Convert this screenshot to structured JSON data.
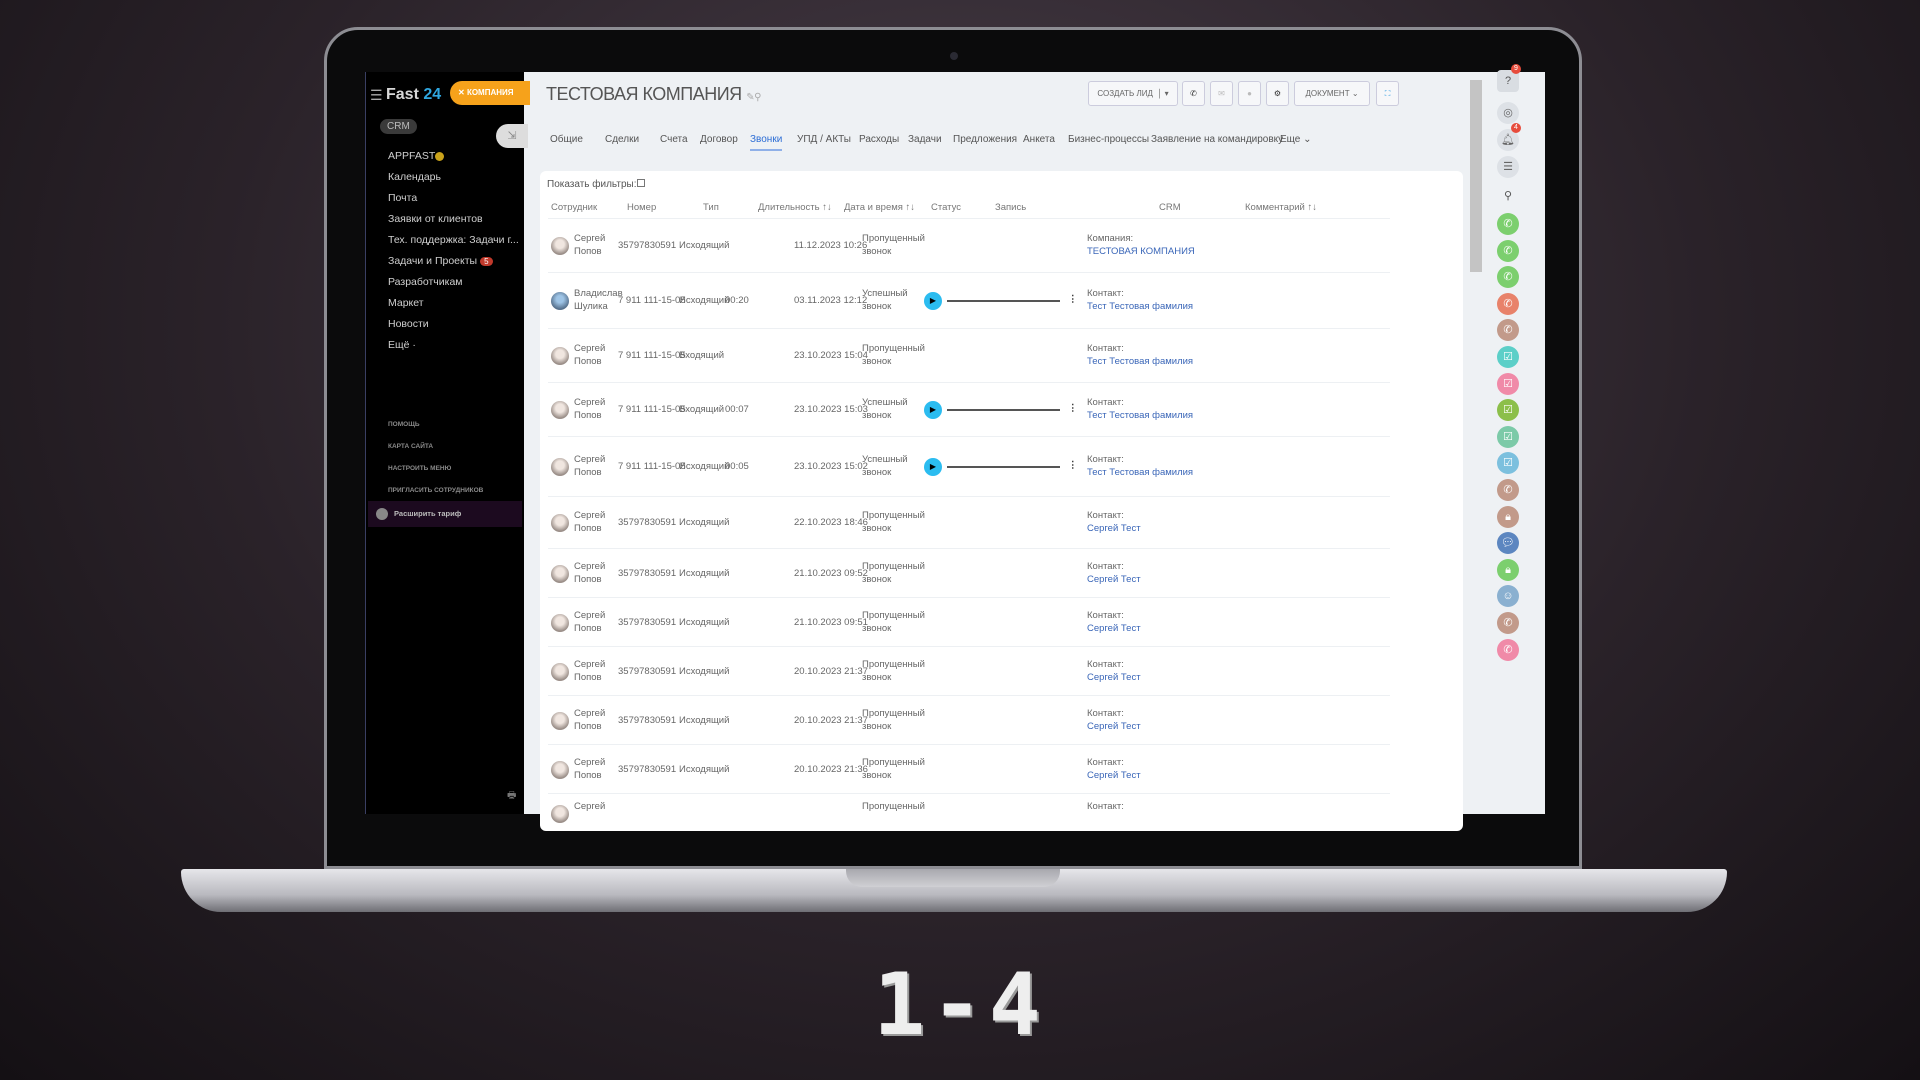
{
  "app": {
    "logo_text": "Fast",
    "logo_num": "24",
    "entity_pill": "КОМПАНИЯ",
    "crm_label": "CRM"
  },
  "sidebar": {
    "items": [
      {
        "label": "APPFAST"
      },
      {
        "label": "Календарь"
      },
      {
        "label": "Почта"
      },
      {
        "label": "Заявки от клиентов"
      },
      {
        "label": "Тех. поддержка: Задачи г..."
      },
      {
        "label": "Задачи и Проекты",
        "badge": "5"
      },
      {
        "label": "Разработчикам"
      },
      {
        "label": "Маркет"
      },
      {
        "label": "Новости"
      },
      {
        "label": "Ещё ·"
      }
    ],
    "small": [
      "Помощь",
      "Карта сайта",
      "Настроить меню",
      "Пригласить сотрудников"
    ],
    "upgrade": "Расширить тариф"
  },
  "header": {
    "title": "ТЕСТОВАЯ КОМПАНИЯ",
    "create_lead": "СОЗДАТЬ ЛИД",
    "document": "ДОКУМЕНТ"
  },
  "tabs": [
    "Общие",
    "Сделки",
    "Счета",
    "Договор",
    "Звонки",
    "УПД / АКТы",
    "Расходы",
    "Задачи",
    "Предложения",
    "Анкета",
    "Бизнес-процессы",
    "Заявление на командировку",
    "Еще ⌄"
  ],
  "active_tab": "Звонки",
  "calls": {
    "show_filters": "Показать фильтры:",
    "columns": [
      "Сотрудник",
      "Номер",
      "Тип",
      "Длительность ↑↓",
      "Дата и время ↑↓",
      "Статус",
      "Запись",
      "CRM",
      "Комментарий ↑↓"
    ],
    "rows": [
      {
        "first": "Сергей",
        "last": "Попов",
        "number": "35797830591",
        "type": "Исходящий",
        "duration": "",
        "datetime": "11.12.2023 10:26",
        "status1": "Пропущенный",
        "status2": "звонок",
        "record": false,
        "crm_label": "Компания:",
        "crm_link": "ТЕСТОВАЯ КОМПАНИЯ"
      },
      {
        "first": "Владислав",
        "last": "Шулика",
        "number": "7 911 111-15-05",
        "type": "Исходящий",
        "duration": "00:20",
        "datetime": "03.11.2023 12:12",
        "status1": "Успешный",
        "status2": "звонок",
        "record": true,
        "crm_label": "Контакт:",
        "crm_link": "Тест Тестовая фамилия"
      },
      {
        "first": "Сергей",
        "last": "Попов",
        "number": "7 911 111-15-05",
        "type": "Входящий",
        "duration": "",
        "datetime": "23.10.2023 15:04",
        "status1": "Пропущенный",
        "status2": "звонок",
        "record": false,
        "crm_label": "Контакт:",
        "crm_link": "Тест Тестовая фамилия"
      },
      {
        "first": "Сергей",
        "last": "Попов",
        "number": "7 911 111-15-05",
        "type": "Входящий",
        "duration": "00:07",
        "datetime": "23.10.2023 15:03",
        "status1": "Успешный",
        "status2": "звонок",
        "record": true,
        "crm_label": "Контакт:",
        "crm_link": "Тест Тестовая фамилия"
      },
      {
        "first": "Сергей",
        "last": "Попов",
        "number": "7 911 111-15-05",
        "type": "Исходящий",
        "duration": "00:05",
        "datetime": "23.10.2023 15:02",
        "status1": "Успешный",
        "status2": "звонок",
        "record": true,
        "crm_label": "Контакт:",
        "crm_link": "Тест Тестовая фамилия"
      },
      {
        "first": "Сергей",
        "last": "Попов",
        "number": "35797830591",
        "type": "Исходящий",
        "duration": "",
        "datetime": "22.10.2023 18:46",
        "status1": "Пропущенный",
        "status2": "звонок",
        "record": false,
        "crm_label": "Контакт:",
        "crm_link": "Сергей Тест"
      },
      {
        "first": "Сергей",
        "last": "Попов",
        "number": "35797830591",
        "type": "Исходящий",
        "duration": "",
        "datetime": "21.10.2023 09:52",
        "status1": "Пропущенный",
        "status2": "звонок",
        "record": false,
        "crm_label": "Контакт:",
        "crm_link": "Сергей Тест"
      },
      {
        "first": "Сергей",
        "last": "Попов",
        "number": "35797830591",
        "type": "Исходящий",
        "duration": "",
        "datetime": "21.10.2023 09:51",
        "status1": "Пропущенный",
        "status2": "звонок",
        "record": false,
        "crm_label": "Контакт:",
        "crm_link": "Сергей Тест"
      },
      {
        "first": "Сергей",
        "last": "Попов",
        "number": "35797830591",
        "type": "Исходящий",
        "duration": "",
        "datetime": "20.10.2023 21:37",
        "status1": "Пропущенный",
        "status2": "звонок",
        "record": false,
        "crm_label": "Контакт:",
        "crm_link": "Сергей Тест"
      },
      {
        "first": "Сергей",
        "last": "Попов",
        "number": "35797830591",
        "type": "Исходящий",
        "duration": "",
        "datetime": "20.10.2023 21:37",
        "status1": "Пропущенный",
        "status2": "звонок",
        "record": false,
        "crm_label": "Контакт:",
        "crm_link": "Сергей Тест"
      },
      {
        "first": "Сергей",
        "last": "Попов",
        "number": "35797830591",
        "type": "Исходящий",
        "duration": "",
        "datetime": "20.10.2023 21:36",
        "status1": "Пропущенный",
        "status2": "звонок",
        "record": false,
        "crm_label": "Контакт:",
        "crm_link": "Сергей Тест"
      },
      {
        "first": "Сергей",
        "last": "",
        "number": "",
        "type": "",
        "duration": "",
        "datetime": "",
        "status1": "Пропущенный",
        "status2": "",
        "record": false,
        "crm_label": "Контакт:",
        "crm_link": ""
      }
    ]
  },
  "right_panel": {
    "help_badge": "9",
    "notif_badge": "4",
    "icons": [
      {
        "name": "phone-icon",
        "color": "#7ccf6e"
      },
      {
        "name": "phone-icon",
        "color": "#7ccf6e"
      },
      {
        "name": "phone-icon",
        "color": "#7ccf6e"
      },
      {
        "name": "phone-icon",
        "color": "#e8826a"
      },
      {
        "name": "phone-icon",
        "color": "#c29a8a"
      },
      {
        "name": "task-icon",
        "color": "#5ccfc8"
      },
      {
        "name": "task-icon",
        "color": "#f08aa8"
      },
      {
        "name": "task-icon",
        "color": "#8cbf4a"
      },
      {
        "name": "task-icon",
        "color": "#7ccaa8"
      },
      {
        "name": "task-icon",
        "color": "#7cc0de"
      },
      {
        "name": "phone-icon",
        "color": "#c29a8a"
      },
      {
        "name": "lock-icon",
        "color": "#c29a8a"
      },
      {
        "name": "chat-icon",
        "color": "#5c86c0"
      },
      {
        "name": "lock-icon",
        "color": "#7ccf6e"
      },
      {
        "name": "avatar-icon",
        "color": "#8ab0d0"
      },
      {
        "name": "phone-icon",
        "color": "#c29a8a"
      },
      {
        "name": "phone-icon",
        "color": "#f08aa8"
      }
    ]
  },
  "overlay_caption": "1-4"
}
